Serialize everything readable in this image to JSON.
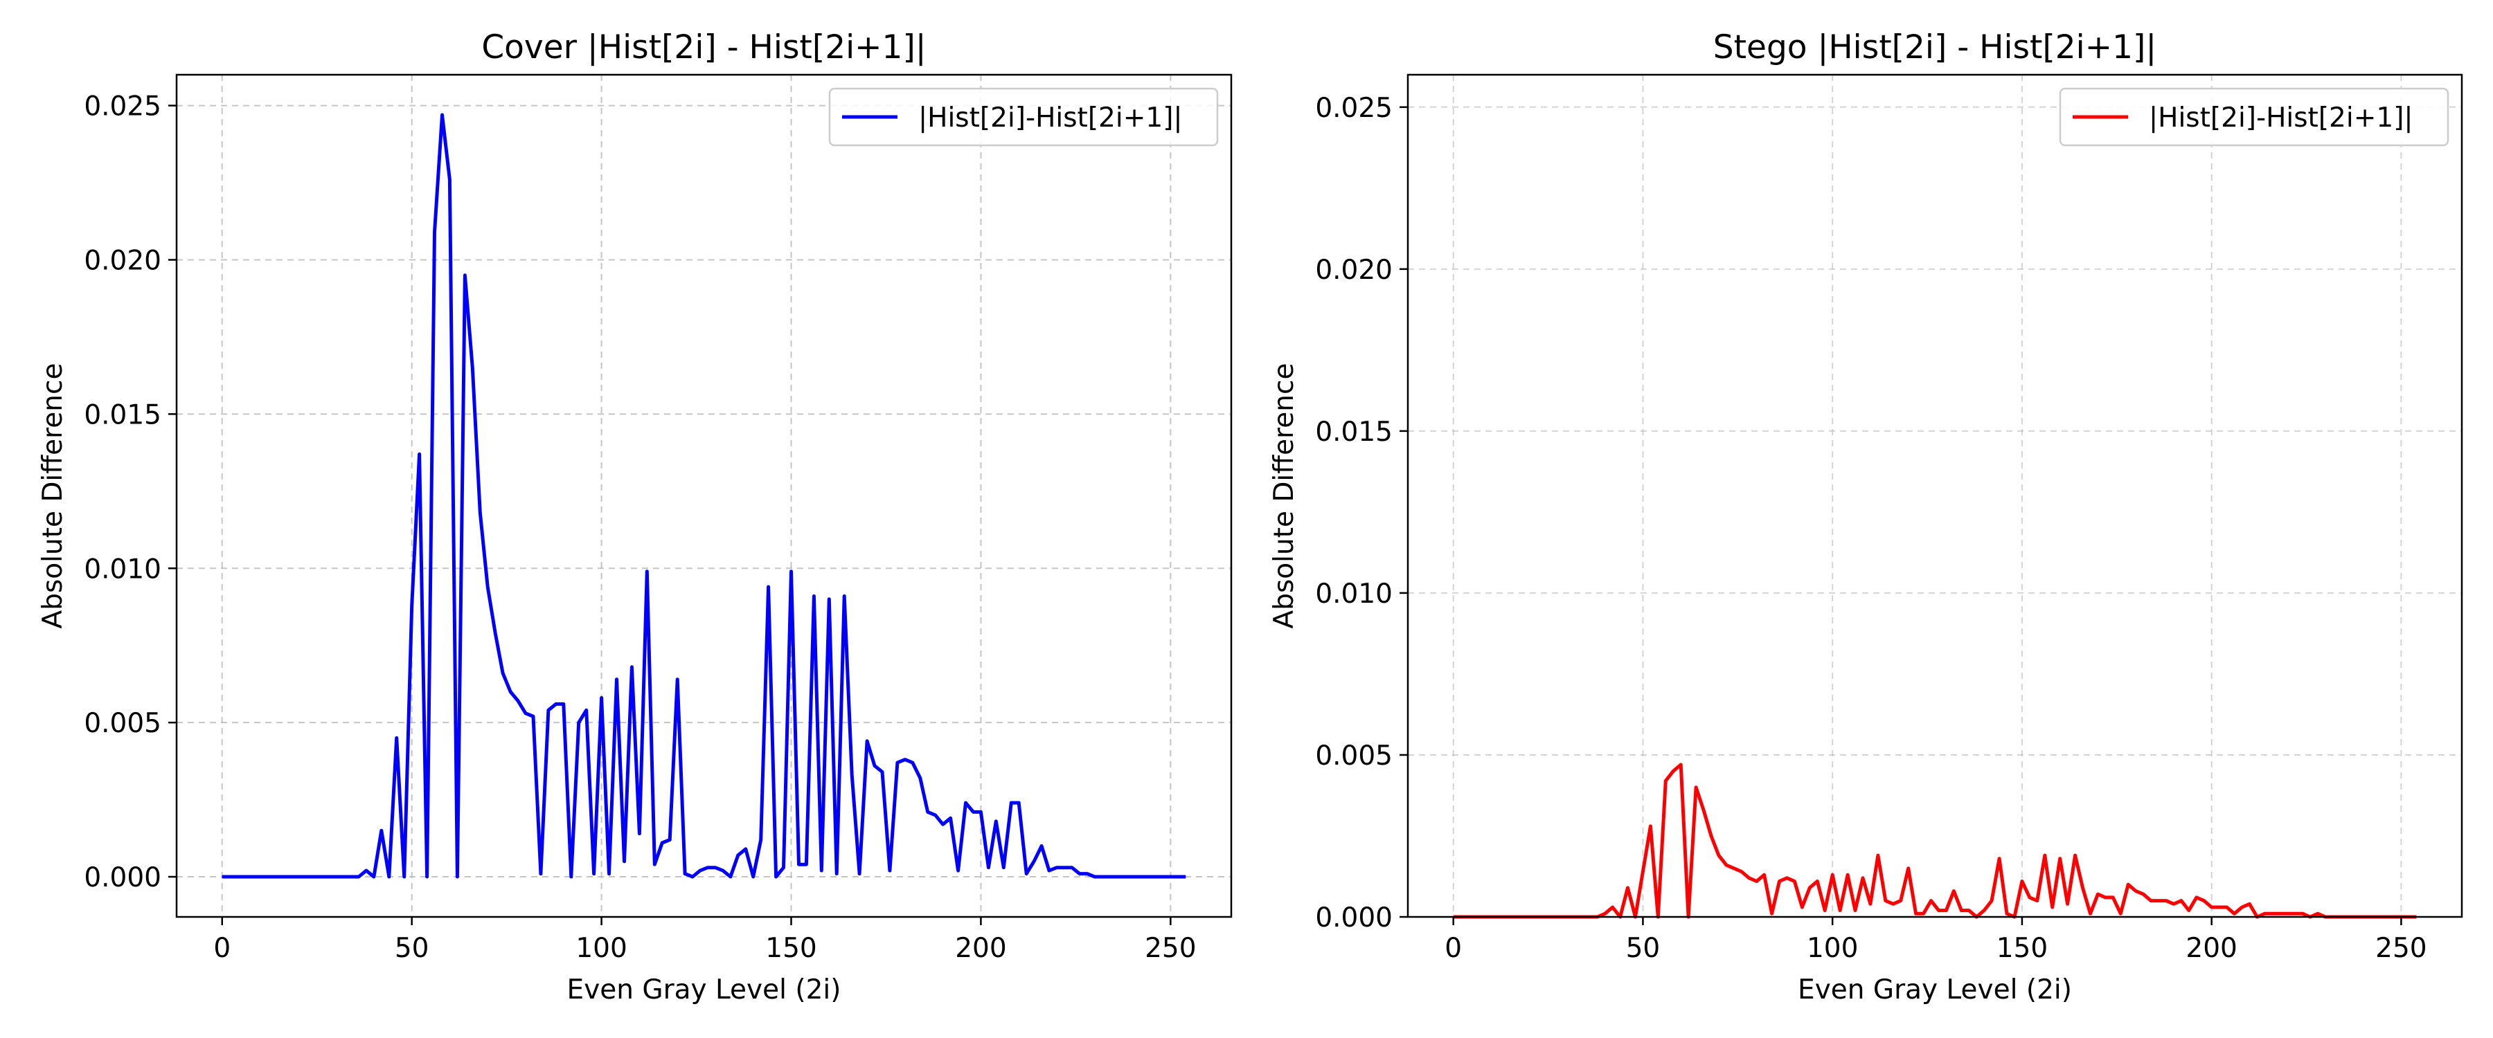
{
  "chart_data": [
    {
      "type": "line",
      "title": "Cover |Hist[2i] - Hist[2i+1]|",
      "xlabel": "Even Gray Level (2i)",
      "ylabel": "Absolute Difference",
      "xlim": [
        -12,
        266
      ],
      "ylim": [
        -0.0013,
        0.026
      ],
      "xticks": [
        0,
        50,
        100,
        150,
        200,
        250
      ],
      "xtick_labels": [
        "0",
        "50",
        "100",
        "150",
        "200",
        "250"
      ],
      "yticks": [
        0,
        0.005,
        0.01,
        0.015,
        0.02,
        0.025
      ],
      "ytick_labels": [
        "0.000",
        "0.005",
        "0.010",
        "0.015",
        "0.020",
        "0.025"
      ],
      "grid": true,
      "legend_position": "top-right",
      "series": [
        {
          "name": "|Hist[2i]-Hist[2i+1]|",
          "color": "#0000ff",
          "x": [
            0,
            2,
            4,
            6,
            8,
            10,
            12,
            14,
            16,
            18,
            20,
            22,
            24,
            26,
            28,
            30,
            32,
            34,
            36,
            38,
            40,
            42,
            44,
            46,
            48,
            50,
            52,
            54,
            56,
            58,
            60,
            62,
            64,
            66,
            68,
            70,
            72,
            74,
            76,
            78,
            80,
            82,
            84,
            86,
            88,
            90,
            92,
            94,
            96,
            98,
            100,
            102,
            104,
            106,
            108,
            110,
            112,
            114,
            116,
            118,
            120,
            122,
            124,
            126,
            128,
            130,
            132,
            134,
            136,
            138,
            140,
            142,
            144,
            146,
            148,
            150,
            152,
            154,
            156,
            158,
            160,
            162,
            164,
            166,
            168,
            170,
            172,
            174,
            176,
            178,
            180,
            182,
            184,
            186,
            188,
            190,
            192,
            194,
            196,
            198,
            200,
            202,
            204,
            206,
            208,
            210,
            212,
            214,
            216,
            218,
            220,
            222,
            224,
            226,
            228,
            230,
            232,
            234,
            236,
            238,
            240,
            242,
            244,
            246,
            248,
            250,
            252,
            254
          ],
          "y": [
            0,
            0,
            0,
            0,
            0,
            0,
            0,
            0,
            0,
            0,
            0,
            0,
            0,
            0,
            0,
            0,
            0,
            0,
            0,
            0.0002,
            0,
            0.0015,
            0,
            0.0045,
            0,
            0.0088,
            0.0137,
            0,
            0.0209,
            0.0247,
            0.0226,
            0,
            0.0195,
            0.0165,
            0.0118,
            0.0094,
            0.0079,
            0.0066,
            0.006,
            0.0057,
            0.0053,
            0.0052,
            0.0001,
            0.0054,
            0.0056,
            0.0056,
            0,
            0.005,
            0.0054,
            0.0001,
            0.0058,
            0.0001,
            0.0064,
            0.0005,
            0.0068,
            0.0014,
            0.0099,
            0.0004,
            0.0011,
            0.0012,
            0.0064,
            0.0001,
            0,
            0.0002,
            0.0003,
            0.0003,
            0.0002,
            0,
            0.0007,
            0.0009,
            0,
            0.0012,
            0.0094,
            0,
            0.0003,
            0.0099,
            0.0004,
            0.0004,
            0.0091,
            0.0002,
            0.009,
            0.0001,
            0.0091,
            0.0033,
            0.0001,
            0.0044,
            0.0036,
            0.0034,
            0.0002,
            0.0037,
            0.0038,
            0.0037,
            0.0032,
            0.0021,
            0.002,
            0.0017,
            0.0019,
            0.0002,
            0.0024,
            0.0021,
            0.0021,
            0.0003,
            0.0018,
            0.0003,
            0.0024,
            0.0024,
            0.0001,
            0.0005,
            0.001,
            0.0002,
            0.0003,
            0.0003,
            0.0003,
            0.0001,
            0.0001,
            0,
            0,
            0,
            0,
            0,
            0,
            0,
            0,
            0,
            0,
            0,
            0,
            0
          ]
        }
      ]
    },
    {
      "type": "line",
      "title": "Stego |Hist[2i] - Hist[2i+1]|",
      "xlabel": "Even Gray Level (2i)",
      "ylabel": "Absolute Difference",
      "xlim": [
        -12,
        266
      ],
      "ylim": [
        0,
        0.026
      ],
      "xticks": [
        0,
        50,
        100,
        150,
        200,
        250
      ],
      "xtick_labels": [
        "0",
        "50",
        "100",
        "150",
        "200",
        "250"
      ],
      "yticks": [
        0,
        0.005,
        0.01,
        0.015,
        0.02,
        0.025
      ],
      "ytick_labels": [
        "0.000",
        "0.005",
        "0.010",
        "0.015",
        "0.020",
        "0.025"
      ],
      "grid": true,
      "legend_position": "top-right",
      "series": [
        {
          "name": "|Hist[2i]-Hist[2i+1]|",
          "color": "#ff0000",
          "x": [
            0,
            2,
            4,
            6,
            8,
            10,
            12,
            14,
            16,
            18,
            20,
            22,
            24,
            26,
            28,
            30,
            32,
            34,
            36,
            38,
            40,
            42,
            44,
            46,
            48,
            50,
            52,
            54,
            56,
            58,
            60,
            62,
            64,
            66,
            68,
            70,
            72,
            74,
            76,
            78,
            80,
            82,
            84,
            86,
            88,
            90,
            92,
            94,
            96,
            98,
            100,
            102,
            104,
            106,
            108,
            110,
            112,
            114,
            116,
            118,
            120,
            122,
            124,
            126,
            128,
            130,
            132,
            134,
            136,
            138,
            140,
            142,
            144,
            146,
            148,
            150,
            152,
            154,
            156,
            158,
            160,
            162,
            164,
            166,
            168,
            170,
            172,
            174,
            176,
            178,
            180,
            182,
            184,
            186,
            188,
            190,
            192,
            194,
            196,
            198,
            200,
            202,
            204,
            206,
            208,
            210,
            212,
            214,
            216,
            218,
            220,
            222,
            224,
            226,
            228,
            230,
            232,
            234,
            236,
            238,
            240,
            242,
            244,
            246,
            248,
            250,
            252,
            254
          ],
          "y": [
            0,
            0,
            0,
            0,
            0,
            0,
            0,
            0,
            0,
            0,
            0,
            0,
            0,
            0,
            0,
            0,
            0,
            0,
            0,
            0,
            0.0001,
            0.0003,
            0,
            0.0009,
            0,
            0.0014,
            0.0028,
            0,
            0.0042,
            0.0045,
            0.0047,
            0,
            0.004,
            0.0033,
            0.0025,
            0.0019,
            0.0016,
            0.0015,
            0.0014,
            0.0012,
            0.0011,
            0.0013,
            0.0001,
            0.0011,
            0.0012,
            0.0011,
            0.0003,
            0.0009,
            0.0011,
            0.0002,
            0.0013,
            0.0002,
            0.0013,
            0.0002,
            0.0012,
            0.0004,
            0.0019,
            0.0005,
            0.0004,
            0.0005,
            0.0015,
            0.0001,
            0.0001,
            0.0005,
            0.0002,
            0.0002,
            0.0008,
            0.0002,
            0.0002,
            0,
            0.0002,
            0.0005,
            0.0018,
            0.0001,
            0,
            0.0011,
            0.0006,
            0.0005,
            0.0019,
            0.0003,
            0.0018,
            0.0004,
            0.0019,
            0.0009,
            0.0001,
            0.0007,
            0.0006,
            0.0006,
            0.0001,
            0.001,
            0.0008,
            0.0007,
            0.0005,
            0.0005,
            0.0005,
            0.0004,
            0.0005,
            0.0002,
            0.0006,
            0.0005,
            0.0003,
            0.0003,
            0.0003,
            0.0001,
            0.0003,
            0.0004,
            0,
            0.0001,
            0.0001,
            0.0001,
            0.0001,
            0.0001,
            0.0001,
            0,
            0.0001,
            0,
            0,
            0,
            0,
            0,
            0,
            0,
            0,
            0,
            0,
            0,
            0,
            0
          ]
        }
      ]
    }
  ]
}
